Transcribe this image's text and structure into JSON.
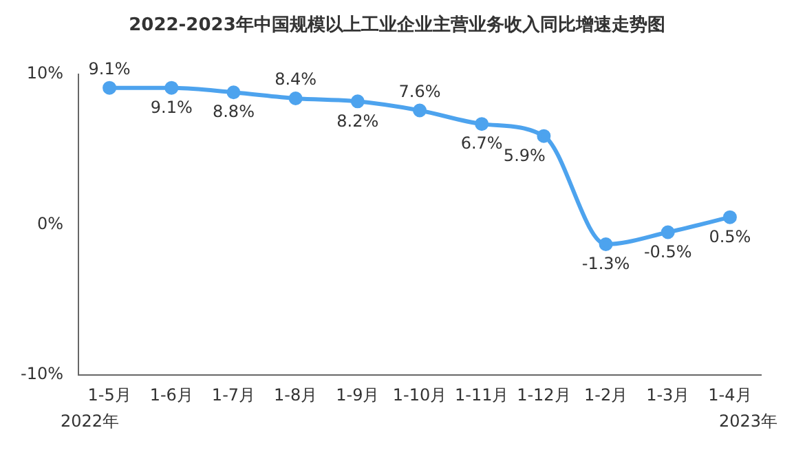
{
  "chart_data": {
    "type": "line",
    "title": "2022-2023年中国规模以上工业企业主营业务收入同比增速走势图",
    "categories": [
      "1-5月",
      "1-6月",
      "1-7月",
      "1-8月",
      "1-9月",
      "1-10月",
      "1-11月",
      "1-12月",
      "1-2月",
      "1-3月",
      "1-4月"
    ],
    "series": [
      {
        "color": "#4da3ee",
        "values": [
          9.1,
          9.1,
          8.8,
          8.4,
          8.2,
          7.6,
          6.7,
          5.9,
          -1.3,
          -0.5,
          0.5
        ]
      }
    ],
    "value_labels": [
      "9.1%",
      "9.1%",
      "8.8%",
      "8.4%",
      "8.2%",
      "7.6%",
      "6.7%",
      "5.9%",
      "-1.3%",
      "-0.5%",
      "0.5%"
    ],
    "ylim": [
      -10,
      10
    ],
    "yticks": [
      {
        "value": -10,
        "label": "-10%"
      },
      {
        "value": 0,
        "label": "0%"
      },
      {
        "value": 10,
        "label": "10%"
      }
    ],
    "marker": "circle",
    "grid": false,
    "legend": false,
    "annotations": [
      "2022年",
      "2023年"
    ]
  }
}
